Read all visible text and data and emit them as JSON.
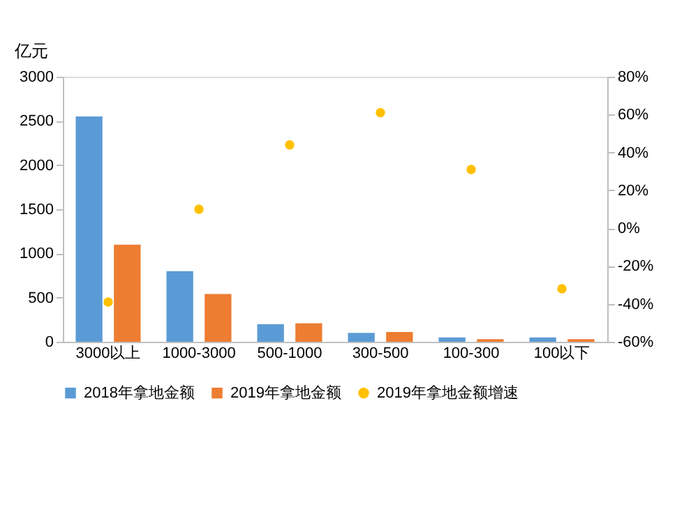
{
  "chart_data": {
    "type": "bar",
    "ylabel": "亿元",
    "categories": [
      "3000以上",
      "1000-3000",
      "500-1000",
      "300-500",
      "100-300",
      "100以下"
    ],
    "series": [
      {
        "name": "2018年拿地金额",
        "color": "#5b9bd5",
        "values": [
          2550,
          800,
          200,
          100,
          50,
          50
        ]
      },
      {
        "name": "2019年拿地金额",
        "color": "#ed7d31",
        "values": [
          1100,
          540,
          210,
          110,
          30,
          30
        ]
      },
      {
        "name": "2019年拿地金额增速",
        "type": "scatter",
        "axis": "y2",
        "color": "#ffc000",
        "values": [
          -39,
          10,
          44,
          61,
          31,
          -32
        ]
      }
    ],
    "ylim": [
      0,
      3000
    ],
    "yticks": [
      0,
      500,
      1000,
      1500,
      2000,
      2500,
      3000
    ],
    "y2lim": [
      -60,
      80
    ],
    "y2ticks": [
      {
        "value": -60,
        "label": "-60%"
      },
      {
        "value": -40,
        "label": "-40%"
      },
      {
        "value": -20,
        "label": "-20%"
      },
      {
        "value": 0,
        "label": "0%"
      },
      {
        "value": 20,
        "label": "20%"
      },
      {
        "value": 40,
        "label": "40%"
      },
      {
        "value": 60,
        "label": "60%"
      },
      {
        "value": 80,
        "label": "80%"
      }
    ],
    "legend": "bottom",
    "grid": false,
    "marker": "circle"
  }
}
